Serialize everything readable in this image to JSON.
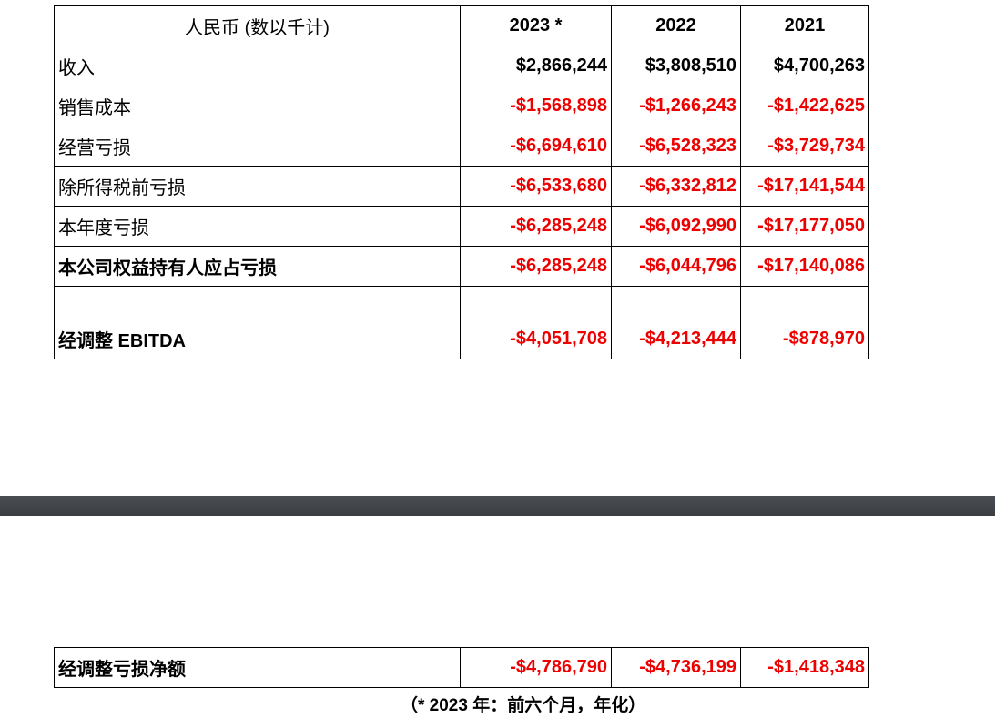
{
  "header": {
    "label": "人民币 (数以千计)",
    "years": [
      "2023 *",
      "2022",
      "2021"
    ]
  },
  "rows": [
    {
      "label": "收入",
      "bold": false,
      "values": [
        "$2,866,244",
        "$3,808,510",
        "$4,700,263"
      ],
      "negative": false
    },
    {
      "label": "销售成本",
      "bold": false,
      "values": [
        "-$1,568,898",
        "-$1,266,243",
        "-$1,422,625"
      ],
      "negative": true
    },
    {
      "label": "经营亏损",
      "bold": false,
      "values": [
        "-$6,694,610",
        "-$6,528,323",
        "-$3,729,734"
      ],
      "negative": true
    },
    {
      "label": "除所得税前亏损",
      "bold": false,
      "values": [
        "-$6,533,680",
        "-$6,332,812",
        "-$17,141,544"
      ],
      "negative": true
    },
    {
      "label": "本年度亏损",
      "bold": false,
      "values": [
        "-$6,285,248",
        "-$6,092,990",
        "-$17,177,050"
      ],
      "negative": true
    },
    {
      "label": "本公司权益持有人应占亏损",
      "bold": true,
      "values": [
        "-$6,285,248",
        "-$6,044,796",
        "-$17,140,086"
      ],
      "negative": true
    },
    {
      "label": "",
      "bold": false,
      "values": [
        "",
        "",
        ""
      ],
      "negative": false
    },
    {
      "label": "经调整 EBITDA",
      "bold": true,
      "values": [
        "-$4,051,708",
        "-$4,213,444",
        "-$878,970"
      ],
      "negative": true
    }
  ],
  "bottom_row": {
    "label": "经调整亏损净额",
    "values": [
      "-$4,786,790",
      "-$4,736,199",
      "-$1,418,348"
    ]
  },
  "footnote": "（* 2023 年：前六个月，年化）",
  "colors": {
    "negative": "#ee0000",
    "divider": "#3f4247"
  }
}
